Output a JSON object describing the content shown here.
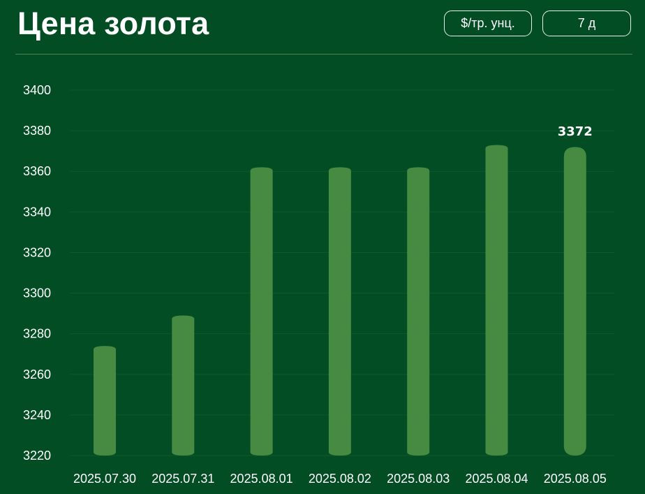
{
  "header": {
    "title": "Цена золота",
    "unit_button": "$/тр. унц.",
    "range_button": "7 д"
  },
  "colors": {
    "background": "#024d24",
    "bar": "#478a41",
    "grid": "#0e5a2c",
    "text": "#ffffff"
  },
  "chart_data": {
    "type": "bar",
    "title": "Цена золота",
    "xlabel": "",
    "ylabel": "",
    "categories": [
      "2025.07.30",
      "2025.07.31",
      "2025.08.01",
      "2025.08.02",
      "2025.08.03",
      "2025.08.04",
      "2025.08.05"
    ],
    "values": [
      3274,
      3289,
      3362,
      3362,
      3362,
      3373,
      3372
    ],
    "ylim": [
      3220,
      3400
    ],
    "yticks": [
      3220,
      3240,
      3260,
      3280,
      3300,
      3320,
      3340,
      3360,
      3380,
      3400
    ],
    "grid": true,
    "value_labels": [
      {
        "index": 6,
        "text": "3372"
      }
    ]
  }
}
